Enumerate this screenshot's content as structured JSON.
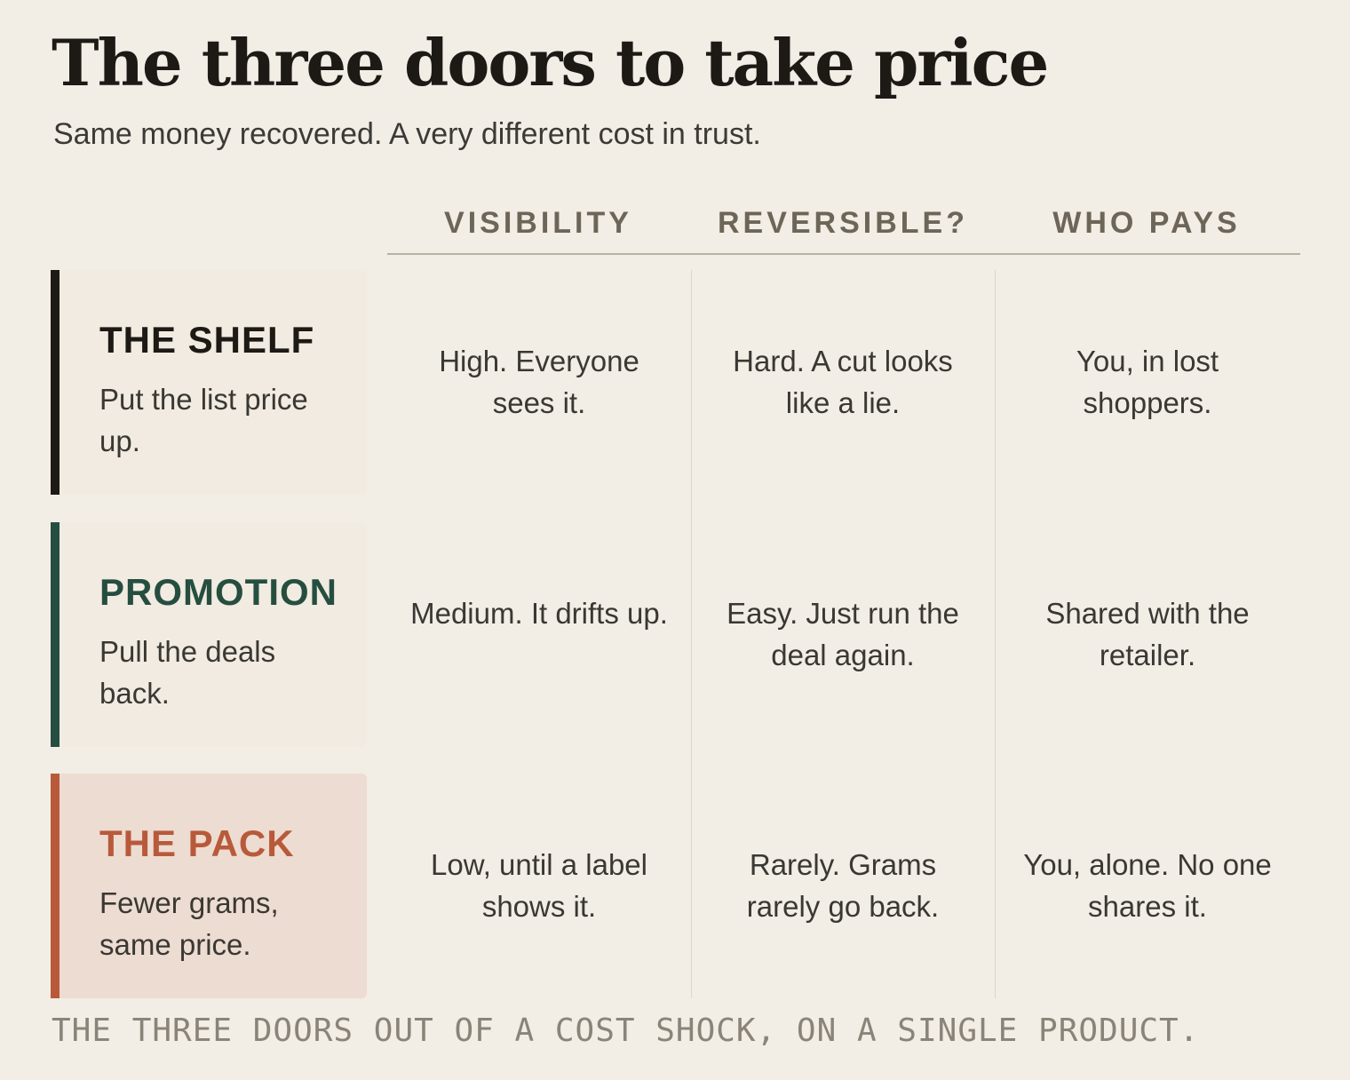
{
  "title": "The three doors to take price",
  "subtitle": "Same money recovered. A very different cost in trust.",
  "columns": [
    "VISIBILITY",
    "REVERSIBLE?",
    "WHO PAYS"
  ],
  "rows": [
    {
      "name": "THE SHELF",
      "desc": "Put the list price up.",
      "accent": "#1d1a16",
      "card_bg": "#f1ebe1",
      "cells": [
        "High. Everyone sees it.",
        "Hard. A cut looks like a lie.",
        "You, in lost shoppers."
      ]
    },
    {
      "name": "PROMOTION",
      "desc": "Pull the deals back.",
      "accent": "#264e40",
      "card_bg": "#f1ebe1",
      "cells": [
        "Medium. It drifts up.",
        "Easy. Just run the deal again.",
        "Shared with the retailer."
      ]
    },
    {
      "name": "THE PACK",
      "desc": "Fewer grams, same price.",
      "accent": "#b85a3a",
      "card_bg": "#eddcd1",
      "cells": [
        "Low, until a label shows it.",
        "Rarely. Grams rarely go back.",
        "You, alone. No one shares it."
      ]
    }
  ],
  "footnote": "THE THREE DOORS OUT OF A COST SHOCK, ON A SINGLE PRODUCT."
}
